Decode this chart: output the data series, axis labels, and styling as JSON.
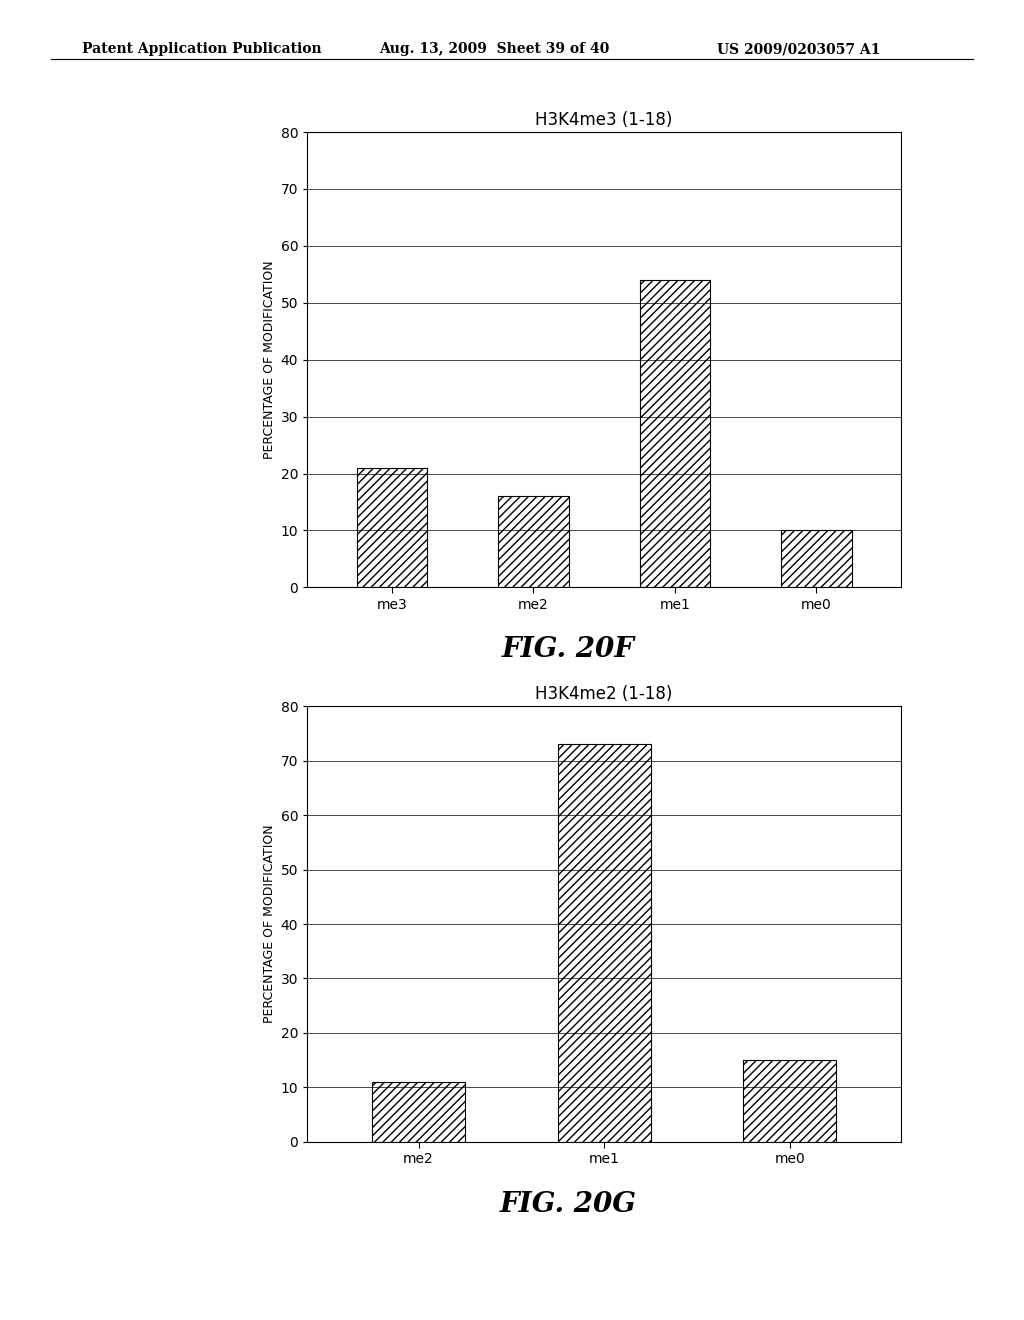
{
  "header_left": "Patent Application Publication",
  "header_mid": "Aug. 13, 2009  Sheet 39 of 40",
  "header_right": "US 2009/0203057 A1",
  "chart_top": {
    "title": "H3K4me3 (1-18)",
    "categories": [
      "me3",
      "me2",
      "me1",
      "me0"
    ],
    "values": [
      21,
      16,
      54,
      10
    ],
    "ylabel": "PERCENTAGE OF MODIFICATION",
    "ylim": [
      0,
      80
    ],
    "yticks": [
      0,
      10,
      20,
      30,
      40,
      50,
      60,
      70,
      80
    ],
    "fig_label": "FIG. 20F"
  },
  "chart_bottom": {
    "title": "H3K4me2 (1-18)",
    "categories": [
      "me2",
      "me1",
      "me0"
    ],
    "values": [
      11,
      73,
      15
    ],
    "ylabel": "PERCENTAGE OF MODIFICATION",
    "ylim": [
      0,
      80
    ],
    "yticks": [
      0,
      10,
      20,
      30,
      40,
      50,
      60,
      70,
      80
    ],
    "fig_label": "FIG. 20G"
  },
  "hatch_pattern": "////",
  "bar_color": "white",
  "bar_edgecolor": "black",
  "background_color": "white",
  "header_fontsize": 10,
  "title_fontsize": 12,
  "label_fontsize": 9,
  "tick_fontsize": 10,
  "fig_label_fontsize": 20
}
